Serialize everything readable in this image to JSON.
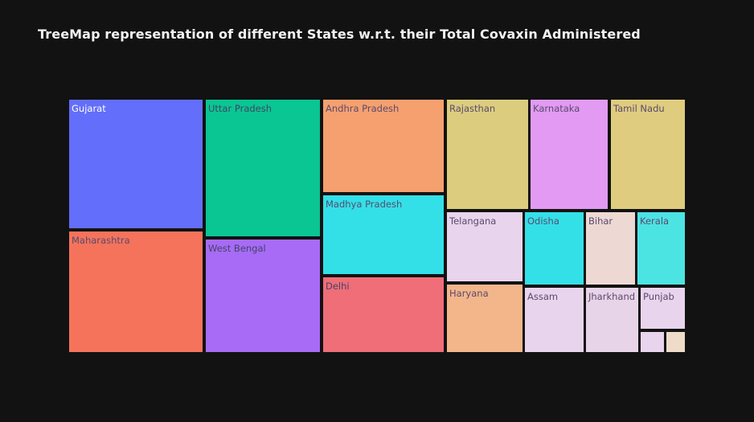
{
  "chart_data": {
    "type": "treemap",
    "title": "TreeMap representation of different States w.r.t. their Total Covaxin Administered",
    "xlabel": "",
    "ylabel": "",
    "grid": false,
    "legend": "none",
    "tiles": [
      {
        "label": "Gujarat",
        "color": "#636efa"
      },
      {
        "label": "Maharashtra",
        "color": "#f5735b"
      },
      {
        "label": "Uttar Pradesh",
        "color": "#09c693"
      },
      {
        "label": "West Bengal",
        "color": "#a76bf6"
      },
      {
        "label": "Andhra Pradesh",
        "color": "#f5a06e"
      },
      {
        "label": "Madhya Pradesh",
        "color": "#33e0e8"
      },
      {
        "label": "Delhi",
        "color": "#ef6e78"
      },
      {
        "label": "Rajasthan",
        "color": "#dccd7e"
      },
      {
        "label": "Karnataka",
        "color": "#e29af2"
      },
      {
        "label": "Tamil Nadu",
        "color": "#dfcc7f"
      },
      {
        "label": "Telangana",
        "color": "#e8d4ec"
      },
      {
        "label": "Haryana",
        "color": "#f3b68b"
      },
      {
        "label": "Odisha",
        "color": "#33e0e8"
      },
      {
        "label": "Assam",
        "color": "#e8d4ec"
      },
      {
        "label": "Bihar",
        "color": "#eed8d4"
      },
      {
        "label": "Kerala",
        "color": "#4ce3e3"
      },
      {
        "label": "Jharkhand",
        "color": "#e8d4e8"
      },
      {
        "label": "Punjab",
        "color": "#e8d4ec"
      },
      {
        "label": "",
        "color": "#e8d4ec"
      },
      {
        "label": "",
        "color": "#efdcc8"
      }
    ]
  }
}
